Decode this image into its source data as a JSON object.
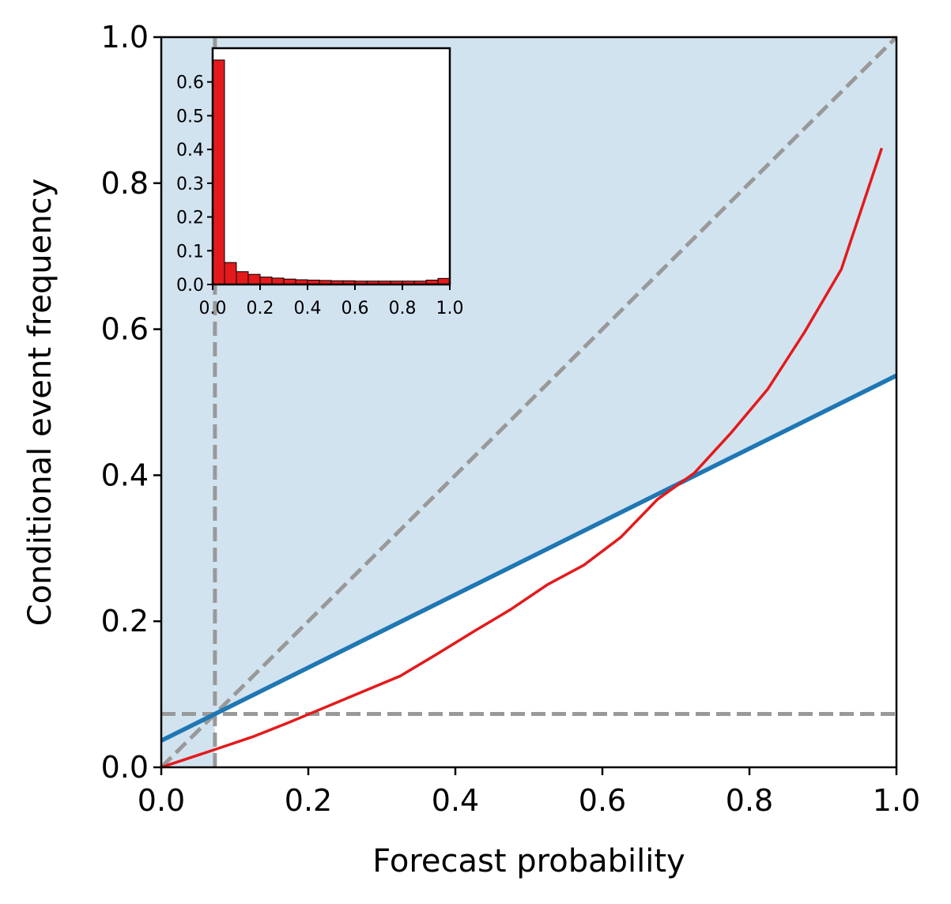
{
  "chart_data": [
    {
      "type": "line",
      "role": "reliability diagram",
      "xlabel": "Forecast probability",
      "ylabel": "Conditional event frequency",
      "xlim": [
        0.0,
        1.0
      ],
      "ylim": [
        0.0,
        1.0
      ],
      "xticks": [
        "0.0",
        "0.2",
        "0.4",
        "0.6",
        "0.8",
        "1.0"
      ],
      "yticks": [
        "0.0",
        "0.2",
        "0.4",
        "0.6",
        "0.8",
        "1.0"
      ],
      "climatology": 0.073,
      "colors": {
        "reliability": "#e31a1c",
        "skill_line": "#1f77b4",
        "skill_region": "#d2e3f0",
        "reference": "#999999"
      },
      "series": [
        {
          "name": "Reliability curve",
          "x": [
            0.0,
            0.075,
            0.125,
            0.175,
            0.225,
            0.275,
            0.325,
            0.375,
            0.425,
            0.475,
            0.525,
            0.575,
            0.625,
            0.675,
            0.725,
            0.775,
            0.825,
            0.875,
            0.925,
            0.98
          ],
          "y": [
            0.0,
            0.025,
            0.042,
            0.062,
            0.083,
            0.104,
            0.125,
            0.155,
            0.186,
            0.216,
            0.25,
            0.277,
            0.315,
            0.367,
            0.403,
            0.458,
            0.518,
            0.596,
            0.682,
            0.848
          ]
        },
        {
          "name": "No-skill line",
          "x": [
            0.0,
            1.0
          ],
          "y": [
            0.0365,
            0.5365
          ]
        },
        {
          "name": "Perfect reliability",
          "x": [
            0.0,
            1.0
          ],
          "y": [
            0.0,
            1.0
          ]
        }
      ]
    },
    {
      "type": "bar",
      "role": "inset forecast frequency histogram",
      "xlim": [
        0.0,
        1.0
      ],
      "ylim": [
        0.0,
        0.7
      ],
      "xticks": [
        "0.0",
        "0.2",
        "0.4",
        "0.6",
        "0.8",
        "1.0"
      ],
      "yticks": [
        "0.0",
        "0.1",
        "0.2",
        "0.3",
        "0.4",
        "0.5",
        "0.6"
      ],
      "bin_width": 0.05,
      "bins": [
        0.0,
        0.05,
        0.1,
        0.15,
        0.2,
        0.25,
        0.3,
        0.35,
        0.4,
        0.45,
        0.5,
        0.55,
        0.6,
        0.65,
        0.7,
        0.75,
        0.8,
        0.85,
        0.9,
        0.95
      ],
      "values": [
        0.665,
        0.065,
        0.038,
        0.03,
        0.022,
        0.019,
        0.016,
        0.014,
        0.013,
        0.012,
        0.011,
        0.011,
        0.01,
        0.01,
        0.01,
        0.01,
        0.01,
        0.01,
        0.013,
        0.018
      ]
    }
  ]
}
